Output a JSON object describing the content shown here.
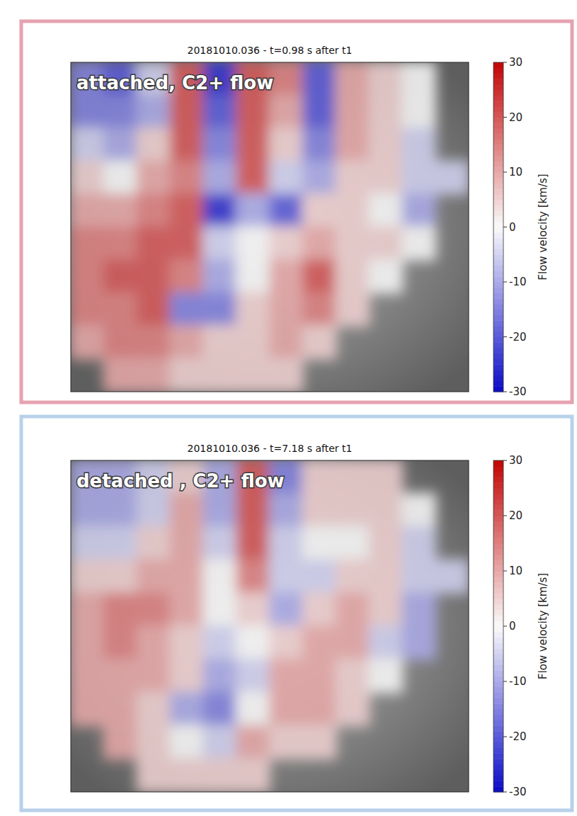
{
  "chart_data": [
    {
      "type": "heatmap",
      "title": "20181010.036 - t=0.98 s after t1",
      "annotation": "attached, C2+ flow",
      "colorbar_label": "Flow velocity [km/s]",
      "clim": [
        -30,
        30
      ],
      "cticks": [
        -30,
        -20,
        -10,
        0,
        10,
        20,
        30
      ],
      "tick_labels": false,
      "cells": [
        [
          -15,
          -20,
          -5,
          20,
          -25,
          20,
          15,
          -20,
          10,
          5,
          0,
          null
        ],
        [
          -15,
          -15,
          -10,
          20,
          -20,
          20,
          10,
          -20,
          10,
          5,
          0,
          null
        ],
        [
          -5,
          -10,
          5,
          20,
          -15,
          20,
          5,
          -15,
          10,
          5,
          -5,
          null
        ],
        [
          5,
          0,
          10,
          15,
          -10,
          20,
          -5,
          -10,
          5,
          5,
          -5,
          -5
        ],
        [
          10,
          10,
          15,
          20,
          -25,
          -10,
          -20,
          5,
          5,
          0,
          -10,
          null
        ],
        [
          15,
          15,
          20,
          20,
          -5,
          0,
          5,
          10,
          5,
          5,
          0,
          null
        ],
        [
          15,
          20,
          20,
          15,
          -10,
          0,
          10,
          20,
          5,
          0,
          null,
          null
        ],
        [
          15,
          15,
          20,
          -15,
          -15,
          5,
          10,
          15,
          5,
          null,
          null,
          null
        ],
        [
          10,
          15,
          15,
          10,
          5,
          5,
          10,
          5,
          null,
          null,
          null,
          null
        ],
        [
          null,
          10,
          10,
          5,
          5,
          5,
          5,
          null,
          null,
          null,
          null,
          null
        ]
      ]
    },
    {
      "type": "heatmap",
      "title": "20181010.036 - t=7.18 s after t1",
      "annotation": "detached , C2+ flow",
      "colorbar_label": "Flow velocity [km/s]",
      "clim": [
        -30,
        30
      ],
      "cticks": [
        -30,
        -20,
        -10,
        0,
        10,
        20,
        30
      ],
      "tick_labels": false,
      "cells": [
        [
          -10,
          -10,
          -5,
          5,
          -10,
          20,
          -15,
          5,
          5,
          5,
          null,
          null
        ],
        [
          -10,
          -10,
          -5,
          10,
          -10,
          20,
          -10,
          5,
          5,
          5,
          0,
          null
        ],
        [
          -5,
          -5,
          5,
          10,
          -5,
          20,
          -5,
          0,
          0,
          5,
          -5,
          null
        ],
        [
          5,
          5,
          10,
          10,
          0,
          15,
          -5,
          -5,
          5,
          5,
          -5,
          -5
        ],
        [
          10,
          15,
          15,
          10,
          0,
          5,
          -10,
          5,
          10,
          5,
          -10,
          null
        ],
        [
          10,
          15,
          10,
          5,
          -5,
          0,
          5,
          10,
          10,
          -5,
          -10,
          null
        ],
        [
          10,
          10,
          10,
          5,
          -10,
          -5,
          10,
          10,
          5,
          0,
          null,
          null
        ],
        [
          10,
          10,
          5,
          -10,
          -15,
          0,
          10,
          10,
          5,
          null,
          null,
          null
        ],
        [
          null,
          10,
          5,
          0,
          -5,
          10,
          5,
          5,
          null,
          null,
          null,
          null
        ],
        [
          null,
          null,
          5,
          5,
          5,
          5,
          null,
          null,
          null,
          null,
          null,
          null
        ]
      ]
    }
  ]
}
